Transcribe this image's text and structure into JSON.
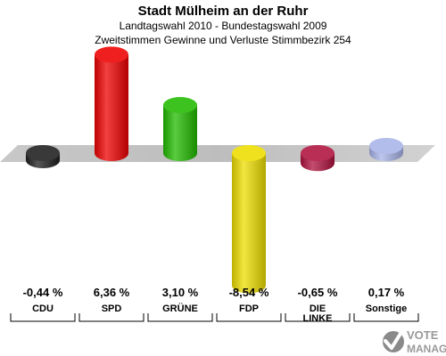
{
  "header": {
    "title": "Stadt Mülheim an der Ruhr",
    "subtitle1": "Landtagswahl 2010 - Bundestagswahl 2009",
    "subtitle2": "Zweitstimmen Gewinne und Verluste Stimmbezirk 254"
  },
  "chart_data": {
    "type": "bar",
    "categories": [
      "CDU",
      "SPD",
      "GRÜNE",
      "FDP",
      "DIE LINKE",
      "Sonstige"
    ],
    "category_lines": [
      [
        "CDU"
      ],
      [
        "SPD"
      ],
      [
        "GRÜNE"
      ],
      [
        "FDP"
      ],
      [
        "DIE",
        "LINKE"
      ],
      [
        "Sonstige"
      ]
    ],
    "values": [
      -0.44,
      6.36,
      3.1,
      -8.54,
      -0.65,
      0.17
    ],
    "value_labels": [
      "-0,44 %",
      "6,36 %",
      "3,10 %",
      "-8,54 %",
      "-0,65 %",
      "0,17 %"
    ],
    "colors": [
      "#1e1e1e",
      "#ee0000",
      "#22bb00",
      "#eedd00",
      "#b0123e",
      "#a8b4e8"
    ],
    "ylim": [
      -10,
      10
    ]
  },
  "logo": {
    "line1": "VOTE",
    "line2": "MANAGER"
  }
}
